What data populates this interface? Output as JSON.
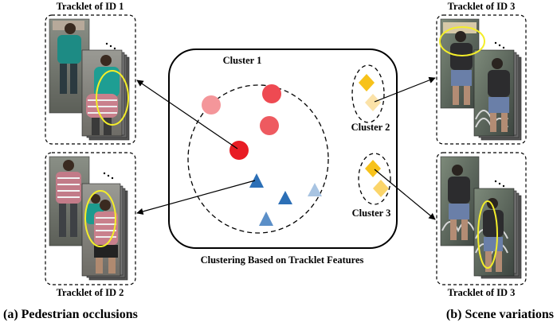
{
  "center_panel": {
    "caption": "Clustering Based on Tracklet Features",
    "cluster_1_label": "Cluster 1",
    "cluster_2_label": "Cluster 2",
    "cluster_3_label": "Cluster 3"
  },
  "left_panel": {
    "top_box_title": "Tracklet  of ID 1",
    "bottom_box_title": "Tracklet  of ID 2",
    "caption": "(a) Pedestrian occlusions"
  },
  "right_panel": {
    "top_box_title": "Tracklet  of ID 3",
    "bottom_box_title": "Tracklet  of ID 3",
    "caption": "(b) Scene variations"
  },
  "colors": {
    "circle_light": "#f4969a",
    "circle_mid": "#ee5a60",
    "circle_dark": "#e81c24",
    "triangle_dark": "#2c6fb6",
    "triangle_mid": "#5b8fc8",
    "triangle_light": "#a8c4e2",
    "diamond_dark": "#f7c21a",
    "diamond_light": "#fbe2a8",
    "highlight_ellipse": "#f4ee2a"
  },
  "icons": [
    "person-image",
    "highlight-ellipse",
    "ellipsis-dots",
    "arrow"
  ]
}
